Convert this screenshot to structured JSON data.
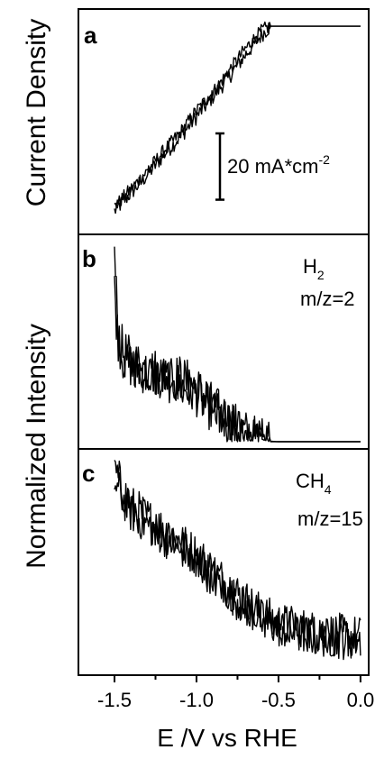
{
  "figure": {
    "ylabel_top": "Current Density",
    "ylabel_bottom": "Normalized Intensity",
    "xlabel": "E /V vs RHE",
    "x_ticks": [
      "-1.5",
      "-1.0",
      "-0.5",
      "0.0"
    ]
  },
  "chart_data": [
    {
      "type": "line",
      "panel": "a",
      "ylabel": "Current Density",
      "xlabel": "E /V vs RHE",
      "xlim": [
        -1.72,
        0.05
      ],
      "ylim": [
        -1,
        0.05
      ],
      "y_ticks": "none",
      "scale_bar": {
        "label": "20 mA*cm",
        "exponent": "-2",
        "span": 0.33
      },
      "x": [
        -1.5,
        -1.4,
        -1.3,
        -1.2,
        -1.1,
        -1.0,
        -0.9,
        -0.8,
        -0.7,
        -0.6,
        -0.55,
        -0.5,
        -0.4,
        -0.3,
        -0.2,
        -0.1,
        0.0
      ],
      "series": [
        {
          "values": [
            -0.92,
            -0.83,
            -0.74,
            -0.64,
            -0.55,
            -0.45,
            -0.35,
            -0.25,
            -0.14,
            -0.04,
            0.0,
            0.0,
            0.0,
            0.0,
            0.0,
            0.0,
            0.0
          ],
          "noise": 0.04
        },
        {
          "values": [
            -0.9,
            -0.81,
            -0.72,
            -0.62,
            -0.53,
            -0.42,
            -0.33,
            -0.22,
            -0.11,
            -0.02,
            0.0,
            0.0,
            0.0,
            0.0,
            0.0,
            0.0,
            0.0
          ],
          "noise": 0.035
        }
      ],
      "grid": false,
      "legend": "none"
    },
    {
      "type": "line",
      "panel": "b",
      "species": "H",
      "species_sub": "2",
      "mz": "m/z=2",
      "ylabel": "Normalized Intensity",
      "xlim": [
        -1.72,
        0.05
      ],
      "ylim": [
        0,
        1.05
      ],
      "x": [
        -1.5,
        -1.48,
        -1.45,
        -1.4,
        -1.3,
        -1.2,
        -1.1,
        -1.0,
        -0.9,
        -0.8,
        -0.7,
        -0.65,
        -0.6,
        -0.5,
        -0.4,
        -0.2,
        0.0
      ],
      "series": [
        {
          "values": [
            0.98,
            0.6,
            0.47,
            0.42,
            0.38,
            0.35,
            0.33,
            0.28,
            0.18,
            0.1,
            0.04,
            0.015,
            0.005,
            0.0,
            0.0,
            0.0,
            0.0
          ],
          "noise": 0.13
        },
        {
          "values": [
            0.8,
            0.55,
            0.44,
            0.4,
            0.36,
            0.33,
            0.3,
            0.25,
            0.16,
            0.09,
            0.035,
            0.01,
            0.0,
            0.0,
            0.0,
            0.0,
            0.0
          ],
          "noise": 0.12
        }
      ],
      "grid": false,
      "legend": "none"
    },
    {
      "type": "line",
      "panel": "c",
      "species": "CH",
      "species_sub": "4",
      "mz": "m/z=15",
      "ylabel": "Normalized Intensity",
      "xlim": [
        -1.72,
        0.05
      ],
      "ylim": [
        0,
        1.05
      ],
      "x": [
        -1.5,
        -1.45,
        -1.4,
        -1.3,
        -1.2,
        -1.1,
        -1.0,
        -0.9,
        -0.8,
        -0.7,
        -0.6,
        -0.5,
        -0.4,
        -0.3,
        -0.2,
        -0.1,
        0.0
      ],
      "series": [
        {
          "values": [
            0.98,
            0.88,
            0.8,
            0.74,
            0.68,
            0.62,
            0.56,
            0.48,
            0.4,
            0.33,
            0.26,
            0.22,
            0.2,
            0.18,
            0.17,
            0.16,
            0.15
          ],
          "noise": 0.11
        },
        {
          "values": [
            0.92,
            0.84,
            0.77,
            0.71,
            0.65,
            0.6,
            0.53,
            0.45,
            0.37,
            0.3,
            0.24,
            0.2,
            0.18,
            0.16,
            0.15,
            0.14,
            0.14
          ],
          "noise": 0.1
        }
      ],
      "grid": false,
      "legend": "none"
    }
  ],
  "panel_labels": [
    "a",
    "b",
    "c"
  ]
}
